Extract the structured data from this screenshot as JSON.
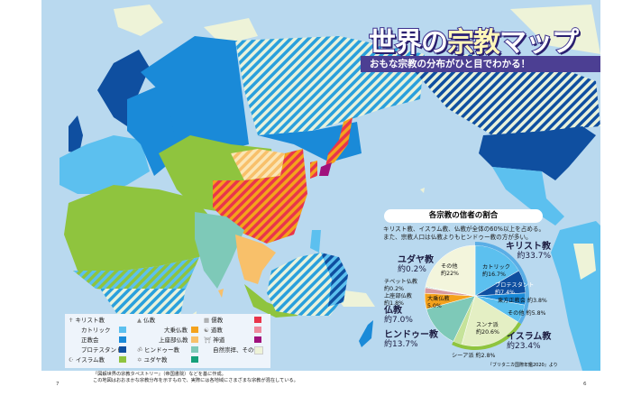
{
  "header": {
    "title_part1": "世界の",
    "title_part2": "宗教",
    "title_part3": "マップ",
    "subtitle": "おもな宗教の分布がひと目でわかる！"
  },
  "colors": {
    "ocean": "#b9d9ef",
    "catholic": "#5cc0ef",
    "orthodox": "#1a8ad8",
    "protestant": "#0f4fa0",
    "islam": "#8fc43e",
    "mahayana": "#f4a21c",
    "theravada": "#f8c06a",
    "hindu": "#7ec9b8",
    "judaism": "#16a07a",
    "confucianism": "#e9354b",
    "taoism": "#ee8a9c",
    "shinto": "#a0117c",
    "other": "#eef3d8"
  },
  "legend": {
    "christianity": {
      "icon": "cross-icon",
      "label": "キリスト教"
    },
    "catholic": "カトリック",
    "orthodox": "正教会",
    "protestant": "プロテスタント",
    "islam": {
      "icon": "crescent-icon",
      "label": "イスラム教"
    },
    "buddhism": {
      "icon": "stupa-icon",
      "label": "仏教"
    },
    "mahayana": "大乗仏教",
    "theravada": "上座部仏教",
    "hindu": {
      "icon": "om-icon",
      "label": "ヒンドゥー教"
    },
    "judaism": {
      "icon": "star-of-david-icon",
      "label": "ユダヤ教"
    },
    "confucianism": {
      "icon": "temple-icon",
      "label": "儒教"
    },
    "taoism": {
      "icon": "yin-yang-icon",
      "label": "道教"
    },
    "shinto": {
      "icon": "torii-icon",
      "label": "神道"
    },
    "other": "自然崇拝、その他"
  },
  "chart_data": {
    "type": "pie",
    "title": "各宗教の信者の割合",
    "description": [
      "キリスト教、イスラム教、仏教が全体の60%以上を占める。",
      "また、宗教人口は仏教よりもヒンドゥー教の方が多い。"
    ],
    "source": "『ブリタニカ国際年鑑2020』より",
    "slices": [
      {
        "label": "カトリック",
        "value_label": "約16.7%",
        "value": 16.7,
        "color": "#5cc0ef",
        "group": "christianity"
      },
      {
        "label": "プロテスタント",
        "value_label": "約7.4%",
        "value": 7.4,
        "color": "#0f4fa0",
        "group": "christianity"
      },
      {
        "label": "東方正教会",
        "value_label": "約3.8%",
        "value": 3.8,
        "color": "#1a8ad8",
        "group": "christianity"
      },
      {
        "label": "その他",
        "value_label": "約5.8%",
        "value": 5.8,
        "color": "#5cc0ef",
        "group": "christianity"
      },
      {
        "label": "スンナ派",
        "value_label": "約20.6%",
        "value": 20.6,
        "color": "#e4efc4",
        "group": "islam"
      },
      {
        "label": "シーア派",
        "value_label": "約2.8%",
        "value": 2.8,
        "color": "#c6e39a",
        "group": "islam"
      },
      {
        "label": "ヒンドゥー教",
        "value_label": "約13.7%",
        "value": 13.7,
        "color": "#7ec9b8",
        "group": "hindu"
      },
      {
        "label": "大乗仏教",
        "value_label": "5.0%",
        "value": 5.0,
        "color": "#f4a21c",
        "group": "buddhism"
      },
      {
        "label": "上座部仏教",
        "value_label": "約1.8%",
        "value": 1.8,
        "color": "#d99aa0",
        "group": "buddhism"
      },
      {
        "label": "チベット仏教",
        "value_label": "約0.2%",
        "value": 0.2,
        "color": "#c7d0a0",
        "group": "buddhism"
      },
      {
        "label": "ユダヤ教",
        "value_label": "約0.2%",
        "value": 0.2,
        "color": "#16a07a",
        "group": "judaism"
      },
      {
        "label": "その他",
        "value_label": "約22%",
        "value": 22,
        "color": "#f3f5dc",
        "group": "other"
      }
    ],
    "groups": [
      {
        "label": "キリスト教",
        "value_label": "約33.7%",
        "value": 33.7
      },
      {
        "label": "イスラム教",
        "value_label": "約23.4%",
        "value": 23.4
      },
      {
        "label": "ヒンドゥー教",
        "value_label": "約13.7%",
        "value": 13.7
      },
      {
        "label": "仏教",
        "value_label": "約7.0%",
        "value": 7.0
      },
      {
        "label": "ユダヤ教",
        "value_label": "約0.2%",
        "value": 0.2
      }
    ]
  },
  "footnote": [
    "『図解世界の宗教タペストリー』（帝国書院）などを基に作成。",
    "この地図はおおまかな宗教分布を示すもので、実際には各地域にさまざまな宗教が混在している。"
  ],
  "page_numbers": {
    "left": "7",
    "right": "6"
  }
}
